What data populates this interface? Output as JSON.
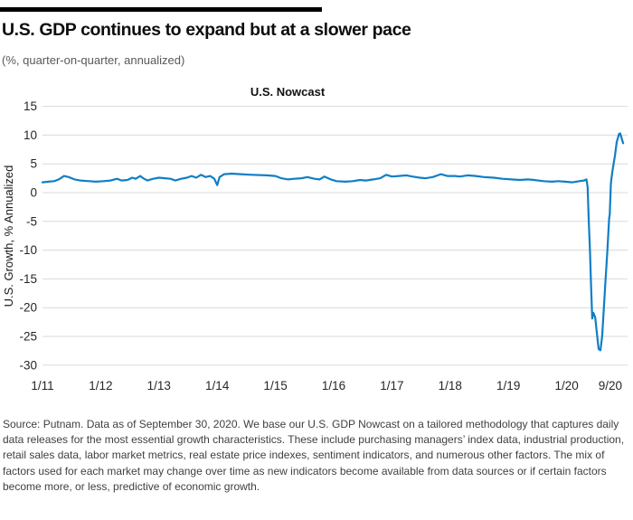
{
  "header": {
    "title": "U.S. GDP continues to expand but at a slower pace",
    "subtitle": "(%, quarter-on-quarter, annualized)"
  },
  "chart_data": {
    "type": "line",
    "title": "U.S. Nowcast",
    "xlabel": "",
    "ylabel": "U.S. Growth, % Annualized",
    "ylim": [
      -30,
      15
    ],
    "yticks": [
      15,
      10,
      5,
      0,
      -5,
      -10,
      -15,
      -20,
      -25,
      -30
    ],
    "xticks": [
      {
        "t": 0,
        "label": "1/11"
      },
      {
        "t": 1,
        "label": "1/12"
      },
      {
        "t": 2,
        "label": "1/13"
      },
      {
        "t": 3,
        "label": "1/14"
      },
      {
        "t": 4,
        "label": "1/15"
      },
      {
        "t": 5,
        "label": "1/16"
      },
      {
        "t": 6,
        "label": "1/17"
      },
      {
        "t": 7,
        "label": "1/18"
      },
      {
        "t": 8,
        "label": "1/19"
      },
      {
        "t": 9,
        "label": "1/20"
      },
      {
        "t": 9.75,
        "label": "9/20"
      }
    ],
    "x_unit": "years since January 2011",
    "grid": "horizontal",
    "legend": "none",
    "line_color": "#107FC5",
    "gridline_color": "#D9D9D9",
    "series": [
      {
        "name": "U.S. Nowcast",
        "points": [
          [
            0,
            1.8
          ],
          [
            0.1,
            1.9
          ],
          [
            0.2,
            2.0
          ],
          [
            0.28,
            2.3
          ],
          [
            0.37,
            2.9
          ],
          [
            0.45,
            2.7
          ],
          [
            0.55,
            2.3
          ],
          [
            0.65,
            2.1
          ],
          [
            0.8,
            2.0
          ],
          [
            0.92,
            1.9
          ],
          [
            1.05,
            2.0
          ],
          [
            1.17,
            2.1
          ],
          [
            1.28,
            2.4
          ],
          [
            1.36,
            2.1
          ],
          [
            1.46,
            2.2
          ],
          [
            1.54,
            2.6
          ],
          [
            1.6,
            2.4
          ],
          [
            1.68,
            2.9
          ],
          [
            1.73,
            2.5
          ],
          [
            1.8,
            2.1
          ],
          [
            1.9,
            2.4
          ],
          [
            2.0,
            2.6
          ],
          [
            2.1,
            2.5
          ],
          [
            2.2,
            2.4
          ],
          [
            2.28,
            2.1
          ],
          [
            2.38,
            2.4
          ],
          [
            2.48,
            2.6
          ],
          [
            2.56,
            2.9
          ],
          [
            2.64,
            2.6
          ],
          [
            2.72,
            3.1
          ],
          [
            2.8,
            2.7
          ],
          [
            2.88,
            2.9
          ],
          [
            2.95,
            2.4
          ],
          [
            3.0,
            1.3
          ],
          [
            3.04,
            2.7
          ],
          [
            3.12,
            3.2
          ],
          [
            3.25,
            3.3
          ],
          [
            3.4,
            3.2
          ],
          [
            3.6,
            3.1
          ],
          [
            3.85,
            3.0
          ],
          [
            4.0,
            2.9
          ],
          [
            4.1,
            2.5
          ],
          [
            4.22,
            2.3
          ],
          [
            4.32,
            2.4
          ],
          [
            4.45,
            2.5
          ],
          [
            4.55,
            2.7
          ],
          [
            4.67,
            2.4
          ],
          [
            4.76,
            2.3
          ],
          [
            4.84,
            2.8
          ],
          [
            4.95,
            2.3
          ],
          [
            5.05,
            2.0
          ],
          [
            5.2,
            1.9
          ],
          [
            5.33,
            2.0
          ],
          [
            5.45,
            2.2
          ],
          [
            5.55,
            2.1
          ],
          [
            5.68,
            2.3
          ],
          [
            5.8,
            2.5
          ],
          [
            5.9,
            3.1
          ],
          [
            6.0,
            2.8
          ],
          [
            6.12,
            2.9
          ],
          [
            6.25,
            3.0
          ],
          [
            6.35,
            2.8
          ],
          [
            6.48,
            2.6
          ],
          [
            6.58,
            2.5
          ],
          [
            6.7,
            2.7
          ],
          [
            6.84,
            3.2
          ],
          [
            6.95,
            2.9
          ],
          [
            7.08,
            2.9
          ],
          [
            7.17,
            2.8
          ],
          [
            7.3,
            3.0
          ],
          [
            7.44,
            2.9
          ],
          [
            7.58,
            2.7
          ],
          [
            7.75,
            2.6
          ],
          [
            7.9,
            2.4
          ],
          [
            8.05,
            2.3
          ],
          [
            8.2,
            2.2
          ],
          [
            8.33,
            2.3
          ],
          [
            8.44,
            2.2
          ],
          [
            8.6,
            2.0
          ],
          [
            8.75,
            1.9
          ],
          [
            8.86,
            2.0
          ],
          [
            8.97,
            1.9
          ],
          [
            9.1,
            1.8
          ],
          [
            9.22,
            2.0
          ],
          [
            9.3,
            2.1
          ],
          [
            9.34,
            2.3
          ],
          [
            9.36,
            1.0
          ],
          [
            9.38,
            -5.0
          ],
          [
            9.4,
            -10.0
          ],
          [
            9.42,
            -16.0
          ],
          [
            9.44,
            -21.9
          ],
          [
            9.46,
            -20.9
          ],
          [
            9.49,
            -21.7
          ],
          [
            9.52,
            -24.5
          ],
          [
            9.55,
            -27.2
          ],
          [
            9.58,
            -27.4
          ],
          [
            9.61,
            -25.0
          ],
          [
            9.64,
            -20.0
          ],
          [
            9.67,
            -15.0
          ],
          [
            9.7,
            -10.0
          ],
          [
            9.73,
            -4.5
          ],
          [
            9.74,
            -3.8
          ],
          [
            9.76,
            1.5
          ],
          [
            9.77,
            2.5
          ],
          [
            9.79,
            4.0
          ],
          [
            9.83,
            6.5
          ],
          [
            9.86,
            8.8
          ],
          [
            9.9,
            10.2
          ],
          [
            9.92,
            10.3
          ],
          [
            9.97,
            8.6
          ]
        ]
      }
    ]
  },
  "footer": {
    "source": "Source: Putnam. Data as of September 30, 2020. We base our U.S. GDP Nowcast on a tailored methodology that captures daily data releases for the most essential growth characteristics. These include purchasing managers’ index data, industrial production, retail sales data, labor market metrics, real estate price indexes, sentiment indicators, and numerous other factors. The mix of factors used for each market may change over time as new indicators become available from data sources or if certain factors become more, or less, predictive of economic growth."
  }
}
